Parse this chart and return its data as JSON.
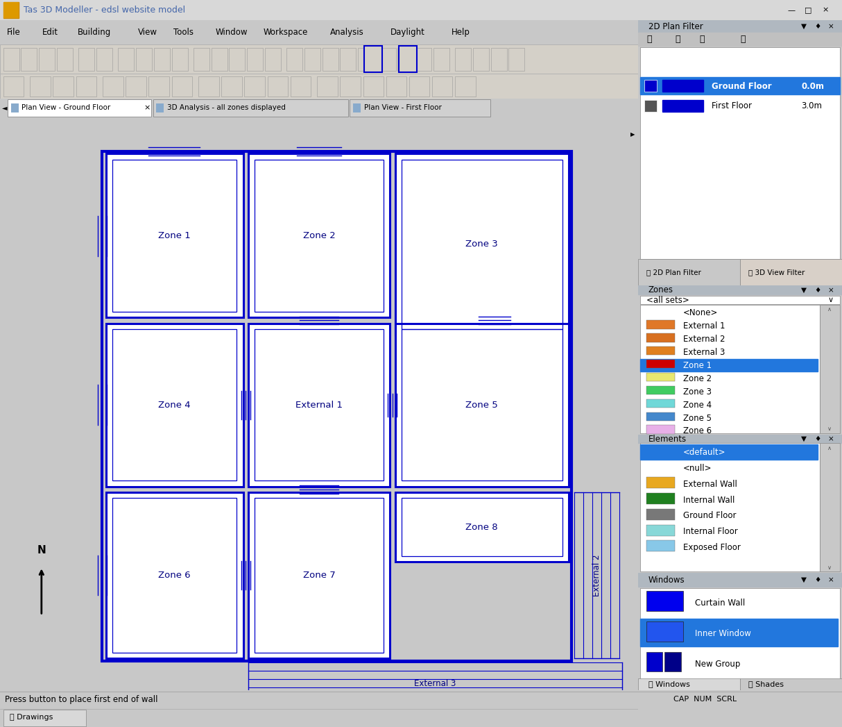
{
  "title": "Tas 3D Modeller - edsl website model",
  "title_icon_color": "#cc8800",
  "title_bg": "#e8e8e8",
  "title_text_color": "#4466aa",
  "menu_items": [
    "File",
    "Edit",
    "Building",
    "View",
    "Tools",
    "Window",
    "Workspace",
    "Analysis",
    "Daylight",
    "Help"
  ],
  "tab_active": "Plan View - Ground Floor",
  "tab2": "3D Analysis - all zones displayed",
  "tab3": "Plan View - First Floor",
  "bg_color": "#c8c8c8",
  "canvas_bg": "#ffffff",
  "main_bg": "#e8e8e8",
  "wall_color": "#0000cc",
  "zone_label_color": "#000080",
  "plan_filter_title": "2D Plan Filter",
  "plan_filter_bg": "#c0c0c0",
  "floor_rows": [
    {
      "name": "Ground Floor",
      "value": "0.0m",
      "box_color": "#0000cc",
      "selected": true
    },
    {
      "name": "First Floor",
      "value": "3.0m",
      "box_color": "#0000aa",
      "selected": false
    }
  ],
  "zones_panel_title": "Zones",
  "zones_bg": "#c0c0c0",
  "zones_list": [
    {
      "name": "<None>",
      "color": null,
      "selected": false
    },
    {
      "name": "External 1",
      "color": "#e07828",
      "selected": false
    },
    {
      "name": "External 2",
      "color": "#d87020",
      "selected": false
    },
    {
      "name": "External 3",
      "color": "#e08020",
      "selected": false
    },
    {
      "name": "Zone 1",
      "color": "#cc0000",
      "selected": true
    },
    {
      "name": "Zone 2",
      "color": "#e8e870",
      "selected": false
    },
    {
      "name": "Zone 3",
      "color": "#40cc60",
      "selected": false
    },
    {
      "name": "Zone 4",
      "color": "#70d8d8",
      "selected": false
    },
    {
      "name": "Zone 5",
      "color": "#4488cc",
      "selected": false
    },
    {
      "name": "Zone 6",
      "color": "#e8b0e8",
      "selected": false
    }
  ],
  "elements_panel_title": "Elements",
  "elements_bg": "#c0c0c0",
  "elements_list": [
    {
      "name": "<default>",
      "color": null,
      "selected": true
    },
    {
      "name": "<null>",
      "color": null,
      "selected": false
    },
    {
      "name": "External Wall",
      "color": "#e8a820",
      "selected": false
    },
    {
      "name": "Internal Wall",
      "color": "#208020",
      "selected": false
    },
    {
      "name": "Ground Floor",
      "color": "#787878",
      "selected": false
    },
    {
      "name": "Internal Floor",
      "color": "#88d8d8",
      "selected": false
    },
    {
      "name": "Exposed Floor",
      "color": "#88c8e8",
      "selected": false
    }
  ],
  "windows_panel_title": "Windows",
  "windows_bg": "#c0c0c0",
  "windows_list": [
    {
      "name": "Curtain Wall",
      "color": "#0000ee",
      "selected": false
    },
    {
      "name": "Inner Window",
      "color": "#2255ee",
      "selected": true
    },
    {
      "name": "New Group",
      "color": "#000088",
      "color2": "#0000cc",
      "selected": false
    }
  ],
  "bottom_tabs": [
    "Windows",
    "Shades"
  ],
  "status_bar": "Press button to place first end of wall",
  "status_right": "CAP  NUM  SCRL",
  "drawings_tab": "Drawings",
  "selected_highlight": "#2277dd",
  "panel_header_bg": "#b0b8c0",
  "scroll_bg": "#c8c8c8"
}
